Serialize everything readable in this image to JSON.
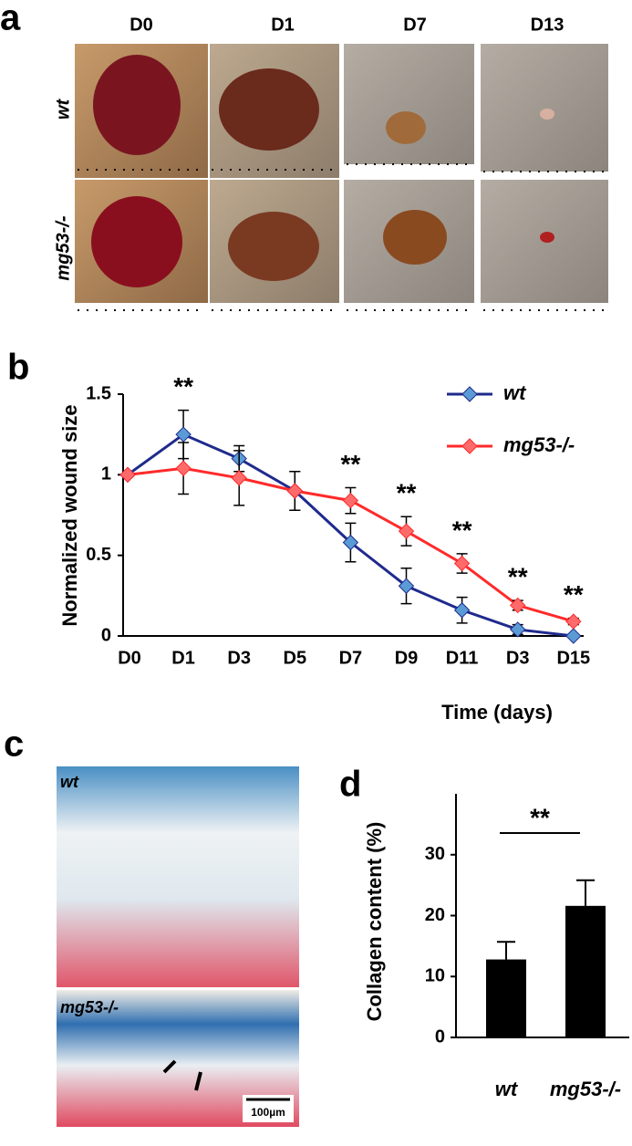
{
  "panels": {
    "a": {
      "letter": "a",
      "columns": [
        "D0",
        "D1",
        "D7",
        "D13"
      ],
      "rows": [
        "wt",
        "mg53-/-"
      ]
    },
    "b": {
      "letter": "b"
    },
    "c": {
      "letter": "c",
      "rows": [
        "wt",
        "mg53-/-"
      ],
      "scale_bar": "100µm"
    },
    "d": {
      "letter": "d"
    }
  },
  "chart_data": [
    {
      "type": "line",
      "x_label": "Time  (days)",
      "y_label": "Normalized wound size",
      "categories": [
        "D0",
        "D1",
        "D3",
        "D5",
        "D7",
        "D9",
        "D11",
        "D3",
        "D15"
      ],
      "series": [
        {
          "name": "wt",
          "color": "#1f2a8c",
          "marker_color": "#5b9bd5",
          "values": [
            1,
            1.25,
            1.1,
            0.9,
            0.58,
            0.31,
            0.16,
            0.04,
            0.0
          ],
          "errors": [
            0,
            0.15,
            0.08,
            0.12,
            0.12,
            0.11,
            0.08,
            0.03,
            0.01
          ]
        },
        {
          "name": "mg53-/-",
          "color": "#ff2a2a",
          "marker_color": "#ff6b6b",
          "values": [
            1,
            1.04,
            0.98,
            0.9,
            0.84,
            0.65,
            0.45,
            0.19,
            0.09
          ],
          "errors": [
            0,
            0.16,
            0.17,
            0.12,
            0.08,
            0.09,
            0.06,
            0.03,
            0.02
          ]
        }
      ],
      "significance": [
        null,
        "**",
        null,
        null,
        "**",
        "**",
        "**",
        "**",
        "**"
      ],
      "ylim": [
        0,
        1.5
      ],
      "yticks": [
        0,
        0.5,
        1,
        1.5
      ],
      "legend": "upper-right"
    },
    {
      "type": "bar",
      "y_label": "Collagen content (%)",
      "categories": [
        "wt",
        "mg53-/-"
      ],
      "values": [
        12.8,
        21.6
      ],
      "errors": [
        2.9,
        4.2
      ],
      "color": "#000000",
      "significance": "**",
      "ylim": [
        0,
        40
      ],
      "yticks": [
        0,
        10,
        20,
        30
      ]
    }
  ]
}
